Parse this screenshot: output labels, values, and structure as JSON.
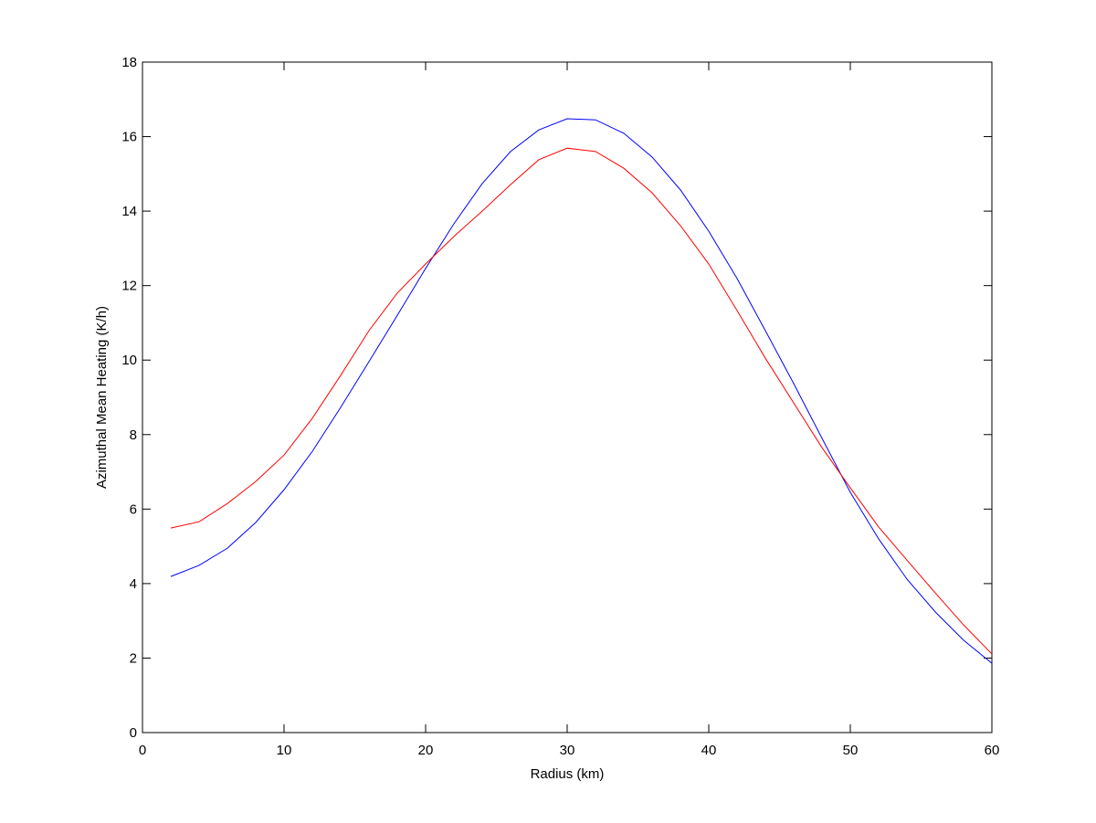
{
  "chart_data": {
    "type": "line",
    "xlabel": "Radius (km)",
    "ylabel": "Azimuthal Mean Heating (K/h)",
    "x": [
      2,
      4,
      6,
      8,
      10,
      12,
      14,
      16,
      18,
      20,
      22,
      24,
      26,
      28,
      30,
      32,
      34,
      36,
      38,
      40,
      42,
      44,
      46,
      48,
      50,
      52,
      54,
      56,
      58,
      60
    ],
    "series": [
      {
        "color": "#0000ff",
        "values": [
          4.19,
          4.49,
          4.95,
          5.64,
          6.52,
          7.55,
          8.73,
          9.96,
          11.2,
          12.46,
          13.66,
          14.74,
          15.6,
          16.18,
          16.48,
          16.45,
          16.09,
          15.45,
          14.57,
          13.46,
          12.19,
          10.79,
          9.37,
          7.9,
          6.45,
          5.2,
          4.12,
          3.24,
          2.48,
          1.86
        ]
      },
      {
        "color": "#ff0000",
        "values": [
          5.49,
          5.66,
          6.15,
          6.74,
          7.45,
          8.44,
          9.59,
          10.79,
          11.8,
          12.58,
          13.32,
          14.0,
          14.71,
          15.38,
          15.69,
          15.6,
          15.15,
          14.49,
          13.61,
          12.58,
          11.33,
          10.05,
          8.85,
          7.65,
          6.57,
          5.52,
          4.63,
          3.75,
          2.89,
          2.11
        ]
      }
    ],
    "xlim": [
      0,
      60
    ],
    "xticks": [
      0,
      10,
      20,
      30,
      40,
      50,
      60
    ],
    "ylim": [
      0,
      18
    ],
    "yticks": [
      0,
      2,
      4,
      6,
      8,
      10,
      12,
      14,
      16,
      18
    ],
    "grid": false
  }
}
